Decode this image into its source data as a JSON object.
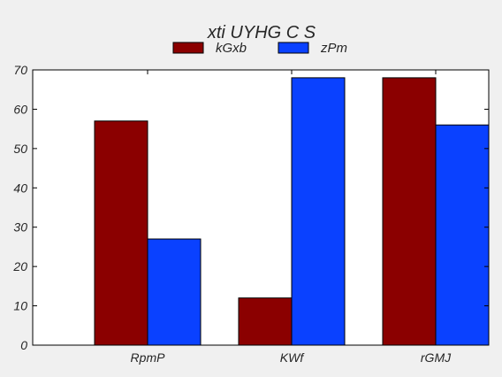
{
  "chart_data": {
    "type": "bar",
    "title": "xti UYHG C S",
    "xlabel": "",
    "ylabel": "",
    "categories": [
      "RpmP",
      "KWf",
      "rGMJ"
    ],
    "series": [
      {
        "name": "kGxb",
        "values": [
          57,
          12,
          68
        ],
        "color": "#8b0000"
      },
      {
        "name": "zPm",
        "values": [
          27,
          68,
          56
        ],
        "color": "#0a41ff"
      }
    ],
    "ylim": [
      0,
      70
    ],
    "yticks": [
      0,
      10,
      20,
      30,
      40,
      50,
      60,
      70
    ],
    "ytick_labels": [
      "0",
      "10",
      "20",
      "30",
      "40",
      "50",
      "60",
      "70"
    ],
    "grid": false,
    "legend_position": "top-center",
    "background_color": "#f0f0f0",
    "plot_background_color": "#ffffff"
  }
}
